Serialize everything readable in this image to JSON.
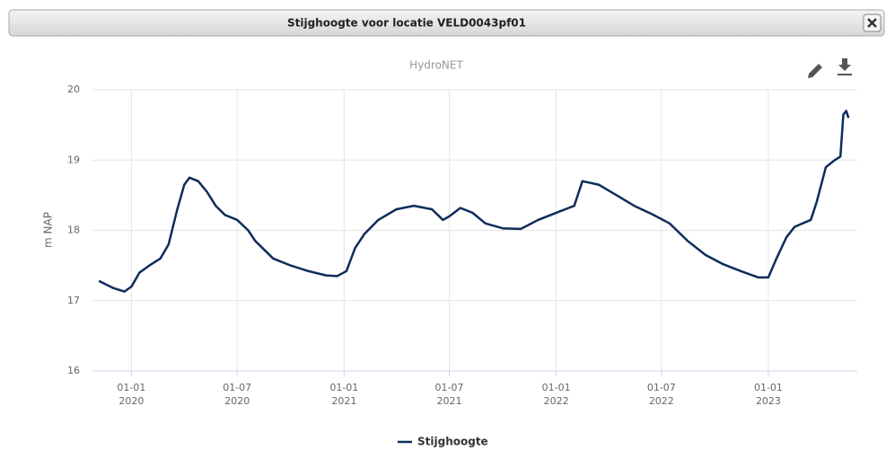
{
  "window": {
    "title": "Stijghoogte voor locatie VELD0043pf01"
  },
  "chart_data": {
    "type": "line",
    "subtitle": "HydroNET",
    "ylabel": "m NAP",
    "x": [
      "2019-11-06",
      "2019-12-01",
      "2019-12-20",
      "2020-01-01",
      "2020-01-15",
      "2020-02-01",
      "2020-02-20",
      "2020-03-05",
      "2020-03-20",
      "2020-04-01",
      "2020-04-10",
      "2020-04-25",
      "2020-05-10",
      "2020-05-25",
      "2020-06-10",
      "2020-07-01",
      "2020-07-20",
      "2020-08-01",
      "2020-09-01",
      "2020-10-01",
      "2020-11-01",
      "2020-12-01",
      "2020-12-20",
      "2021-01-05",
      "2021-01-20",
      "2021-02-05",
      "2021-03-01",
      "2021-04-01",
      "2021-05-01",
      "2021-06-01",
      "2021-06-20",
      "2021-07-01",
      "2021-07-20",
      "2021-08-10",
      "2021-09-01",
      "2021-10-01",
      "2021-11-01",
      "2021-12-01",
      "2022-01-01",
      "2022-02-01",
      "2022-02-15",
      "2022-03-15",
      "2022-04-15",
      "2022-05-15",
      "2022-06-15",
      "2022-07-15",
      "2022-08-15",
      "2022-09-15",
      "2022-10-15",
      "2022-11-15",
      "2022-12-15",
      "2023-01-01",
      "2023-01-15",
      "2023-02-01",
      "2023-02-15",
      "2023-03-15",
      "2023-03-25",
      "2023-04-10",
      "2023-04-25",
      "2023-05-05",
      "2023-05-10",
      "2023-05-15",
      "2023-05-19"
    ],
    "series": [
      {
        "name": "Stijghoogte",
        "color": "#0d2d5a",
        "values": [
          17.28,
          17.18,
          17.13,
          17.2,
          17.4,
          17.5,
          17.6,
          17.8,
          18.3,
          18.65,
          18.75,
          18.7,
          18.55,
          18.35,
          18.22,
          18.15,
          18.0,
          17.85,
          17.6,
          17.5,
          17.42,
          17.36,
          17.35,
          17.42,
          17.75,
          17.95,
          18.15,
          18.3,
          18.35,
          18.3,
          18.15,
          18.2,
          18.32,
          18.25,
          18.1,
          18.03,
          18.02,
          18.15,
          18.25,
          18.35,
          18.7,
          18.65,
          18.5,
          18.35,
          18.23,
          18.1,
          17.85,
          17.65,
          17.52,
          17.42,
          17.33,
          17.33,
          17.6,
          17.9,
          18.05,
          18.15,
          18.4,
          18.9,
          19.0,
          19.05,
          19.65,
          19.7,
          19.6
        ]
      }
    ],
    "xlim": [
      "2019-10-26",
      "2023-06-03"
    ],
    "xticks": [
      {
        "value": "2020-01-01",
        "label": "01-01\n2020"
      },
      {
        "value": "2020-07-01",
        "label": "01-07\n2020"
      },
      {
        "value": "2021-01-01",
        "label": "01-01\n2021"
      },
      {
        "value": "2021-07-01",
        "label": "01-07\n2021"
      },
      {
        "value": "2022-01-01",
        "label": "01-01\n2022"
      },
      {
        "value": "2022-07-01",
        "label": "01-07\n2022"
      },
      {
        "value": "2023-01-01",
        "label": "01-01\n2023"
      }
    ],
    "ylim": [
      16,
      20
    ],
    "yticks": [
      16,
      17,
      18,
      19,
      20
    ],
    "grid": true
  }
}
